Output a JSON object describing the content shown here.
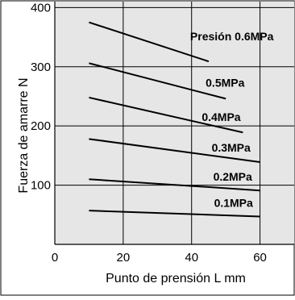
{
  "chart_data": {
    "type": "line",
    "title": "",
    "xlabel": "Punto de prensión L mm",
    "ylabel": "Fuerza de amarre N",
    "xlim": [
      0,
      70
    ],
    "ylim": [
      0,
      410
    ],
    "x_ticks": [
      "0",
      "20",
      "40",
      "60"
    ],
    "y_ticks": [
      "100",
      "200",
      "300",
      "400"
    ],
    "grid": true,
    "series": [
      {
        "name": "Presión 0.6MPa",
        "x": [
          10,
          45
        ],
        "y": [
          375,
          309
        ]
      },
      {
        "name": "0.5MPa",
        "x": [
          10,
          50
        ],
        "y": [
          306,
          246
        ]
      },
      {
        "name": "0.4MPa",
        "x": [
          10,
          55
        ],
        "y": [
          248,
          189
        ]
      },
      {
        "name": "0.3MPa",
        "x": [
          10,
          60
        ],
        "y": [
          178,
          139
        ]
      },
      {
        "name": "0.2MPa",
        "x": [
          10,
          60
        ],
        "y": [
          110,
          91
        ]
      },
      {
        "name": "0.1MPa",
        "x": [
          10,
          60
        ],
        "y": [
          57,
          47
        ]
      }
    ]
  },
  "colors": {
    "plot_background": "#e6e6e6",
    "grid": "#000000",
    "series": "#000000"
  }
}
